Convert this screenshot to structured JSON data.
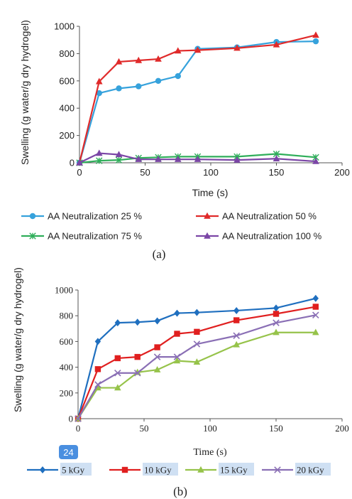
{
  "chart_data": [
    {
      "type": "line",
      "caption": "(a)",
      "xlabel": "Time (s)",
      "ylabel": "Swelling (g water/g dry hydrogel)",
      "xlim": [
        0,
        200
      ],
      "ylim": [
        0,
        1000
      ],
      "xticks": [
        "0",
        "50",
        "100",
        "150",
        "200"
      ],
      "yticks": [
        "0",
        "200",
        "400",
        "600",
        "800",
        "1000"
      ],
      "legend_placement": "bottom",
      "series": [
        {
          "name": "AA Neutralization 25 %",
          "color": "#36a2dc",
          "marker": "circle",
          "x": [
            0,
            15,
            30,
            45,
            60,
            75,
            90,
            120,
            150,
            180
          ],
          "y": [
            0,
            510,
            545,
            560,
            600,
            635,
            835,
            845,
            885,
            890
          ]
        },
        {
          "name": "AA Neutralization 50 %",
          "color": "#e02a2a",
          "marker": "triangle",
          "x": [
            0,
            15,
            30,
            45,
            60,
            75,
            90,
            120,
            150,
            180
          ],
          "y": [
            0,
            595,
            740,
            750,
            760,
            820,
            825,
            840,
            865,
            935
          ]
        },
        {
          "name": "AA Neutralization 75 %",
          "color": "#2fae5a",
          "marker": "cross",
          "x": [
            0,
            15,
            30,
            45,
            60,
            75,
            90,
            120,
            150,
            180
          ],
          "y": [
            0,
            15,
            20,
            35,
            40,
            45,
            45,
            45,
            65,
            40
          ]
        },
        {
          "name": "AA Neutralization 100 %",
          "color": "#7b46a6",
          "marker": "triangle",
          "x": [
            0,
            15,
            30,
            45,
            60,
            75,
            90,
            120,
            150,
            180
          ],
          "y": [
            0,
            70,
            60,
            25,
            25,
            25,
            25,
            20,
            30,
            10
          ]
        }
      ]
    },
    {
      "type": "line",
      "caption": "(b)",
      "xlabel": "Time (s)",
      "ylabel": "Swelling (g water/g dry hydrogel)",
      "xlim": [
        0,
        200
      ],
      "ylim": [
        0,
        1000
      ],
      "xticks": [
        "0",
        "50",
        "100",
        "150",
        "200"
      ],
      "yticks": [
        "0",
        "200",
        "400",
        "600",
        "800",
        "1000"
      ],
      "legend_placement": "bottom",
      "badge": "24",
      "series": [
        {
          "name": "5 kGy",
          "color": "#1f6fbf",
          "marker": "diamond",
          "x": [
            0,
            15,
            30,
            45,
            60,
            75,
            90,
            120,
            150,
            180
          ],
          "y": [
            0,
            600,
            745,
            750,
            760,
            820,
            825,
            840,
            860,
            935
          ]
        },
        {
          "name": "10 kGy",
          "color": "#e01f1f",
          "marker": "square",
          "x": [
            0,
            15,
            30,
            45,
            60,
            75,
            90,
            120,
            150,
            180
          ],
          "y": [
            0,
            385,
            470,
            480,
            555,
            660,
            675,
            765,
            815,
            870
          ]
        },
        {
          "name": "15 kGy",
          "color": "#96c34a",
          "marker": "triangle",
          "x": [
            0,
            15,
            30,
            45,
            60,
            75,
            90,
            120,
            150,
            180
          ],
          "y": [
            0,
            240,
            240,
            360,
            380,
            450,
            440,
            575,
            670,
            670
          ]
        },
        {
          "name": "20 kGy",
          "color": "#8a6fb5",
          "marker": "x",
          "x": [
            0,
            15,
            30,
            45,
            60,
            75,
            90,
            120,
            150,
            180
          ],
          "y": [
            0,
            265,
            355,
            355,
            480,
            480,
            580,
            645,
            745,
            805
          ]
        }
      ]
    }
  ]
}
